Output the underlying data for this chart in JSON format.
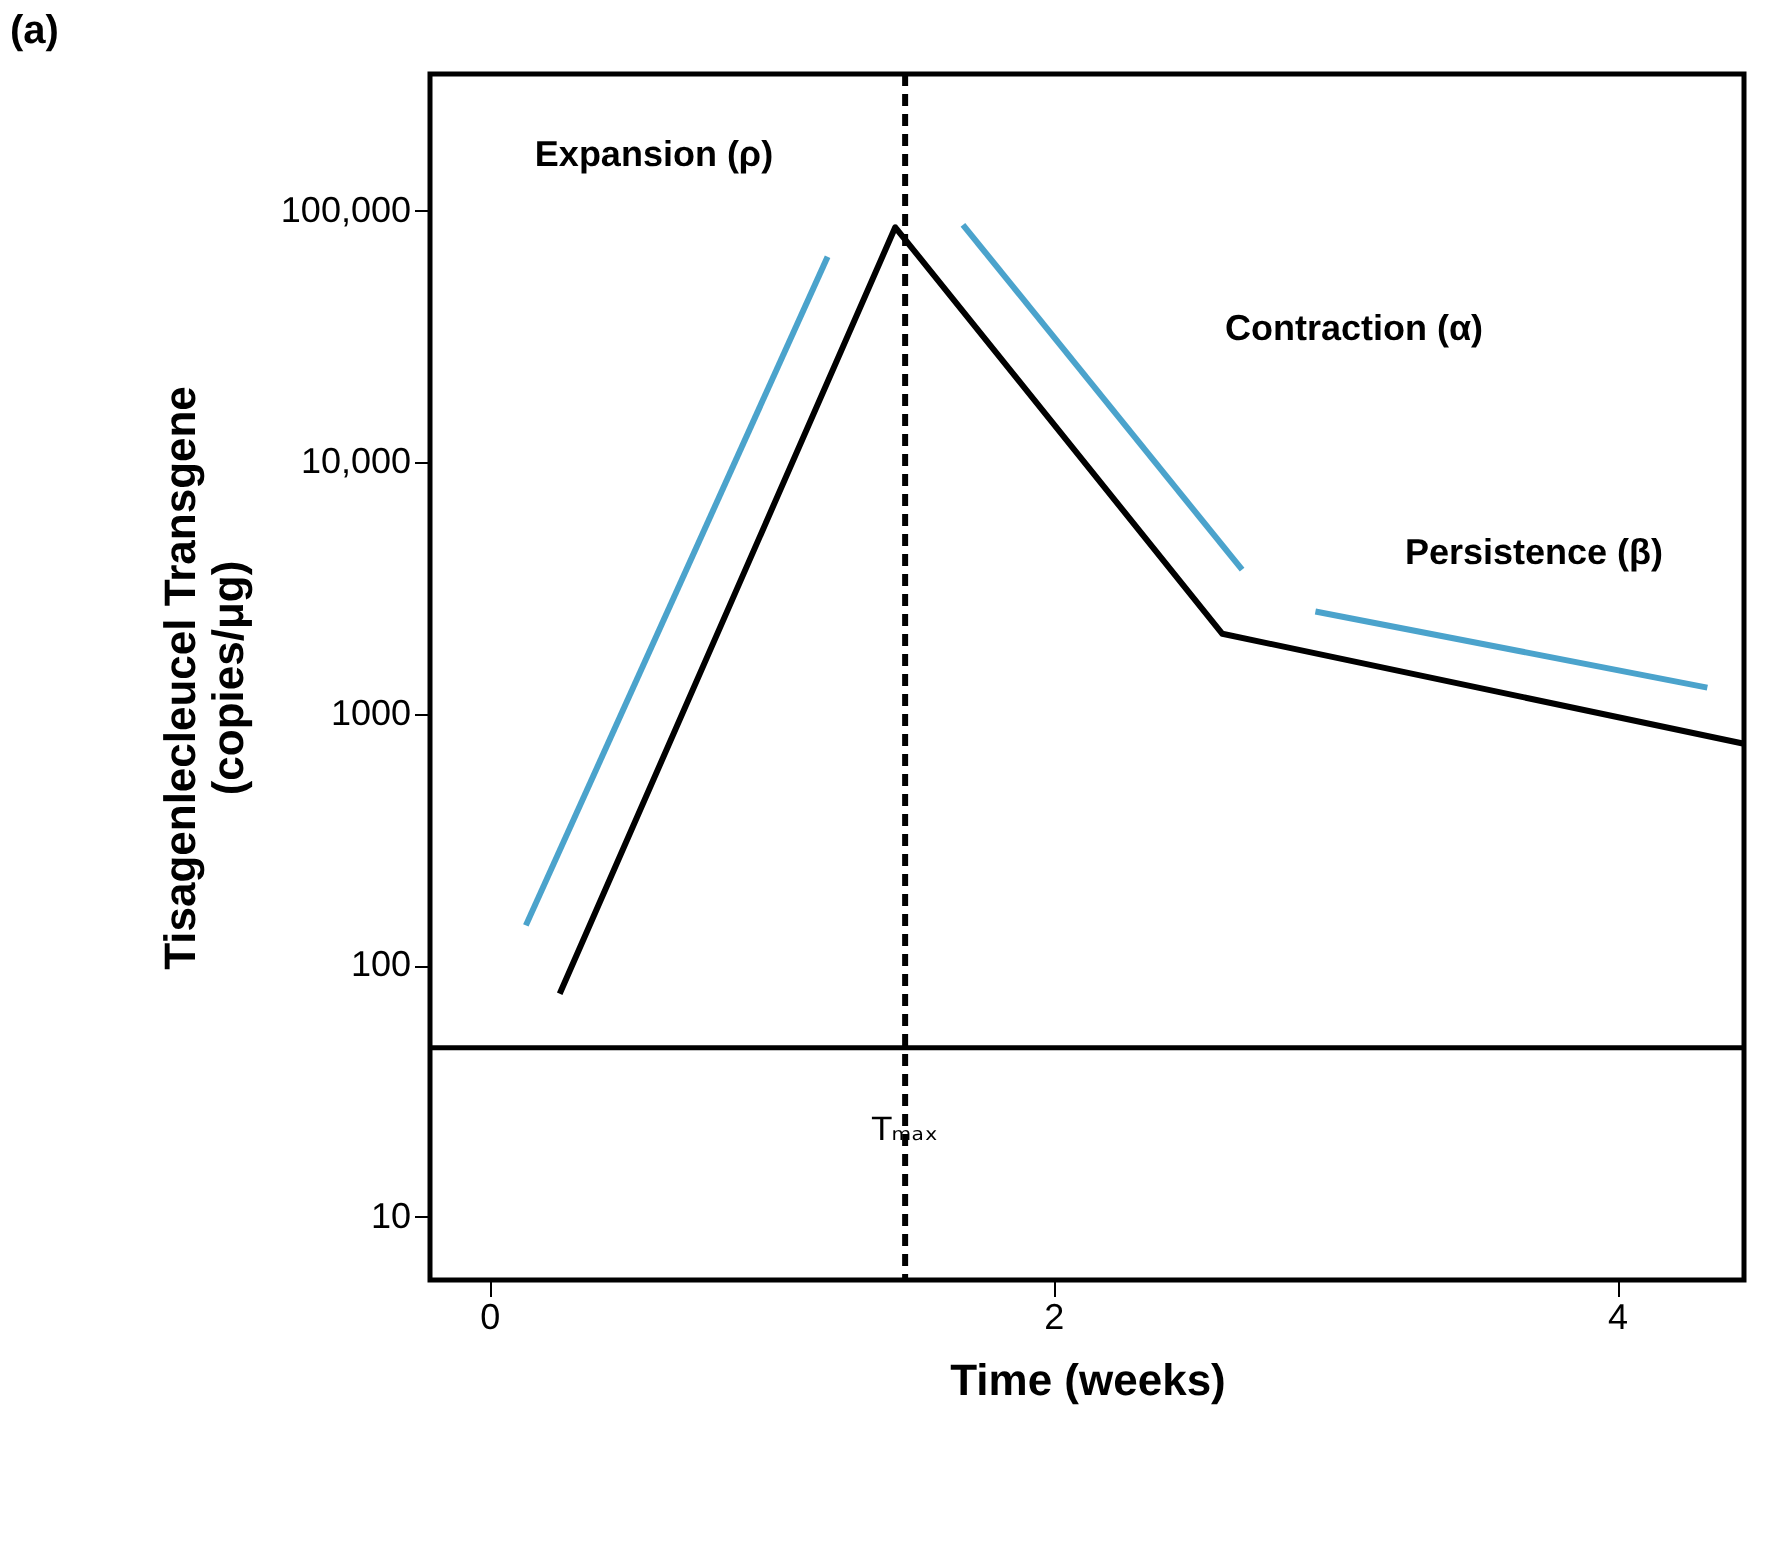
{
  "chart_data": {
    "type": "line",
    "title": "(a)",
    "xlabel": "Time (weeks)",
    "ylabel": "Tisagenlecleucel Transgene\n(copies/μg)",
    "log": "y",
    "grid": false,
    "marker": "none",
    "line_style": "solid",
    "xlim": [
      -0.21,
      4.45
    ],
    "xticks": [
      0,
      2,
      4
    ],
    "ylim": [
      5.6,
      350000
    ],
    "yticks": [
      10,
      100,
      1000,
      {
        "value": 10000,
        "label": "10,000"
      },
      {
        "value": 100000,
        "label": "100,000"
      }
    ],
    "series": [
      {
        "color": "#000000",
        "x": [
          0.25,
          1.44,
          2.6,
          4.45
        ],
        "values": [
          77,
          86000,
          2080,
          760
        ]
      },
      {
        "color": "#4ba3cc",
        "x": [
          0.13,
          1.2
        ],
        "values": [
          144,
          65700
        ]
      },
      {
        "color": "#4ba3cc",
        "x": [
          1.68,
          2.67
        ],
        "values": [
          88000,
          3740
        ]
      },
      {
        "color": "#4ba3cc",
        "x": [
          2.93,
          4.32
        ],
        "values": [
          2550,
          1270
        ]
      }
    ],
    "ref_lines": [
      {
        "axis": "y",
        "value": 47,
        "color": "#000000",
        "line_style": "solid"
      },
      {
        "axis": "x",
        "value": 1.475,
        "label": "Tₘₐₓ",
        "color": "#000000",
        "line_style": "dashed"
      }
    ],
    "annotations": [
      "Expansion (ρ)",
      "Contraction (α)",
      "Persistence (β)"
    ]
  }
}
